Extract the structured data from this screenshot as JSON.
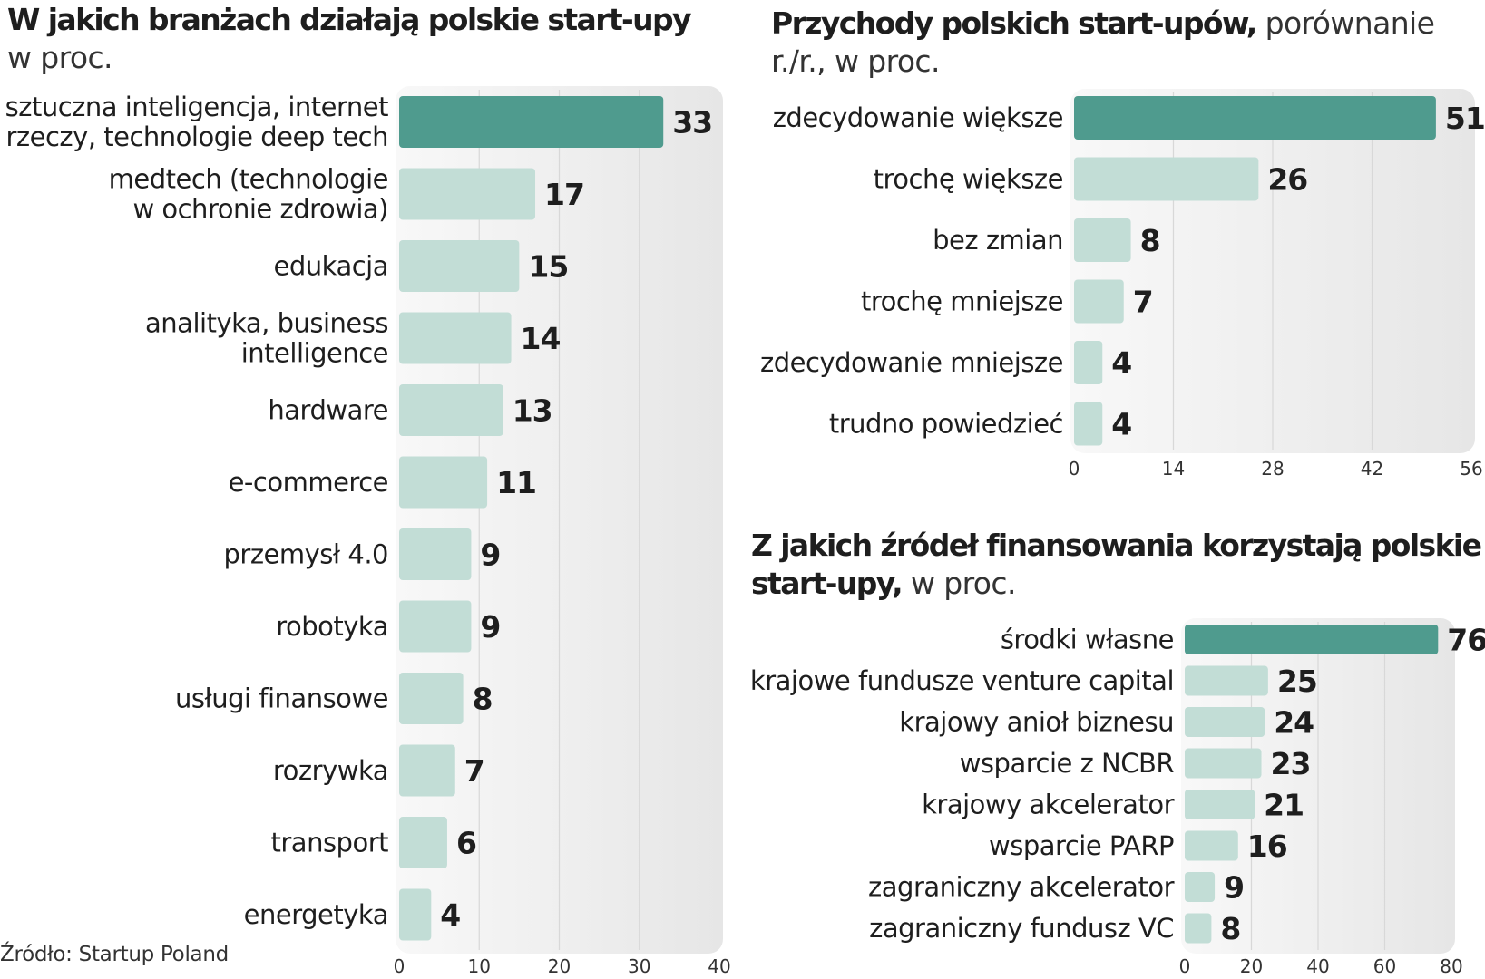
{
  "colors": {
    "highlight": "#4f9b8e",
    "normal": "#c2ddd6",
    "grid": "#d8d8d8",
    "panel": "#ececec"
  },
  "chart1": {
    "title": "W jakich branżach działają polskie start-upy",
    "subtitle": "w proc."
  },
  "chart2": {
    "title": "Przychody polskich start-upów,",
    "subtitle_inline": "porównanie",
    "subtitle_line2": "r./r., w proc."
  },
  "chart3": {
    "title": "Z jakich źródeł finansowania korzystają polskie",
    "title_line2": "start-upy,",
    "subtitle_inline": "w proc."
  },
  "source": "Źródło: Startup Poland",
  "chart_data": [
    {
      "type": "bar",
      "orientation": "horizontal",
      "title": "W jakich branżach działają polskie start-upy",
      "subtitle": "w proc.",
      "categories": [
        [
          "sztuczna inteligencja, internet",
          "rzeczy, technologie deep tech"
        ],
        [
          "medtech (technologie",
          "w ochronie zdrowia)"
        ],
        [
          "edukacja"
        ],
        [
          "analityka, business",
          "intelligence"
        ],
        [
          "hardware"
        ],
        [
          "e-commerce"
        ],
        [
          "przemysł 4.0"
        ],
        [
          "robotyka"
        ],
        [
          "usługi finansowe"
        ],
        [
          "rozrywka"
        ],
        [
          "transport"
        ],
        [
          "energetyka"
        ]
      ],
      "values": [
        33,
        17,
        15,
        14,
        13,
        11,
        9,
        9,
        8,
        7,
        6,
        4
      ],
      "highlight_index": 0,
      "xlim": [
        0,
        40
      ],
      "ticks": [
        0,
        10,
        20,
        30,
        40
      ]
    },
    {
      "type": "bar",
      "orientation": "horizontal",
      "title": "Przychody polskich start-upów, porównanie r./r., w proc.",
      "categories": [
        [
          "zdecydowanie większe"
        ],
        [
          "trochę większe"
        ],
        [
          "bez zmian"
        ],
        [
          "trochę mniejsze"
        ],
        [
          "zdecydowanie mniejsze"
        ],
        [
          "trudno powiedzieć"
        ]
      ],
      "values": [
        51,
        26,
        8,
        7,
        4,
        4
      ],
      "highlight_index": 0,
      "xlim": [
        0,
        56
      ],
      "ticks": [
        0,
        14,
        28,
        42,
        56
      ]
    },
    {
      "type": "bar",
      "orientation": "horizontal",
      "title": "Z jakich źródeł finansowania korzystają polskie start-upy, w proc.",
      "categories": [
        [
          "środki własne"
        ],
        [
          "krajowe fundusze venture capital"
        ],
        [
          "krajowy anioł biznesu"
        ],
        [
          "wsparcie z NCBR"
        ],
        [
          "krajowy akcelerator"
        ],
        [
          "wsparcie PARP"
        ],
        [
          "zagraniczny akcelerator"
        ],
        [
          "zagraniczny fundusz VC"
        ]
      ],
      "values": [
        76,
        25,
        24,
        23,
        21,
        16,
        9,
        8
      ],
      "highlight_index": 0,
      "xlim": [
        0,
        80
      ],
      "ticks": [
        0,
        20,
        40,
        60,
        80
      ]
    }
  ]
}
